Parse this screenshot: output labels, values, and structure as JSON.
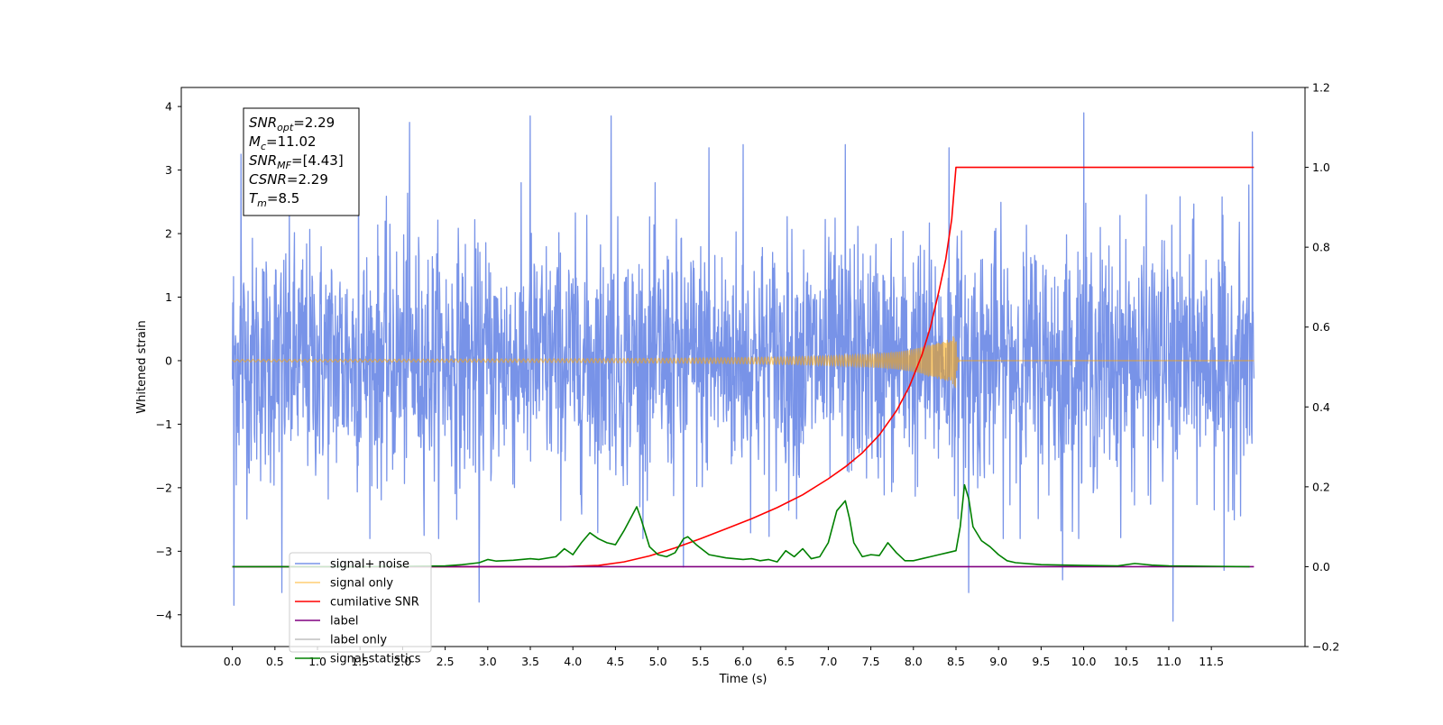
{
  "chart_data": {
    "type": "line",
    "xlabel": "Time (s)",
    "ylabel": "Whitened strain",
    "ylabel_right": "",
    "xlim": [
      -0.6,
      12.6
    ],
    "ylim": [
      -4.5,
      4.3
    ],
    "ylim_right": [
      -0.2,
      1.2
    ],
    "x_ticks": [
      0.0,
      0.5,
      1.0,
      1.5,
      2.0,
      2.5,
      3.0,
      3.5,
      4.0,
      4.5,
      5.0,
      5.5,
      6.0,
      6.5,
      7.0,
      7.5,
      8.0,
      8.5,
      9.0,
      9.5,
      10.0,
      10.5,
      11.0,
      11.5
    ],
    "x_tick_labels": [
      "0.0",
      "0.5",
      "1.0",
      "1.5",
      "2.0",
      "2.5",
      "3.0",
      "3.5",
      "4.0",
      "4.5",
      "5.0",
      "5.5",
      "6.0",
      "6.5",
      "7.0",
      "7.5",
      "8.0",
      "8.5",
      "9.0",
      "9.5",
      "10.0",
      "10.5",
      "11.0",
      "11.5"
    ],
    "y_ticks": [
      -4,
      -3,
      -2,
      -1,
      0,
      1,
      2,
      3,
      4
    ],
    "y_tick_labels": [
      "−4",
      "−3",
      "−2",
      "−1",
      "0",
      "1",
      "2",
      "3",
      "4"
    ],
    "y_ticks_right": [
      -0.2,
      0.0,
      0.2,
      0.4,
      0.6,
      0.8,
      1.0,
      1.2
    ],
    "y_tick_labels_right": [
      "−0.2",
      "0.0",
      "0.2",
      "0.4",
      "0.6",
      "0.8",
      "1.0",
      "1.2"
    ],
    "grid": false,
    "legend_position": "lower-left",
    "annotation": {
      "lines": [
        {
          "base": "SNR",
          "sub": "opt",
          "value": "=2.29"
        },
        {
          "base": "M",
          "sub": "c",
          "value": "=11.02"
        },
        {
          "base": "SNR",
          "sub": "MF",
          "value": "=[4.43]"
        },
        {
          "base": "CSNR",
          "sub": "",
          "value": "=2.29"
        },
        {
          "base": "T",
          "sub": "m",
          "value": "=8.5"
        }
      ]
    },
    "series": [
      {
        "name": "signal+ noise",
        "color": "#7893e8",
        "axis": "left",
        "kind": "noise",
        "x_range": [
          0.0,
          12.0
        ],
        "band": [
          -2.3,
          2.3
        ],
        "spikes": [
          {
            "x": 0.02,
            "y": -3.85
          },
          {
            "x": 0.1,
            "y": 3.25
          },
          {
            "x": 0.58,
            "y": -3.65
          },
          {
            "x": 1.48,
            "y": 3.35
          },
          {
            "x": 2.08,
            "y": 3.75
          },
          {
            "x": 2.9,
            "y": -3.8
          },
          {
            "x": 3.5,
            "y": 3.85
          },
          {
            "x": 4.45,
            "y": 3.85
          },
          {
            "x": 5.3,
            "y": -3.25
          },
          {
            "x": 5.6,
            "y": 3.35
          },
          {
            "x": 6.0,
            "y": 3.4
          },
          {
            "x": 7.2,
            "y": 3.4
          },
          {
            "x": 8.42,
            "y": 3.35
          },
          {
            "x": 8.65,
            "y": -3.65
          },
          {
            "x": 9.75,
            "y": -3.45
          },
          {
            "x": 10.0,
            "y": 3.9
          },
          {
            "x": 11.05,
            "y": -4.1
          },
          {
            "x": 11.65,
            "y": -3.3
          },
          {
            "x": 11.98,
            "y": 3.6
          }
        ]
      },
      {
        "name": "signal only",
        "color": "#ffa500",
        "axis": "left",
        "kind": "chirp",
        "x_range": [
          0.0,
          12.0
        ],
        "merger_time": 8.5,
        "peak_amplitude": 0.45
      },
      {
        "name": "cumilative SNR",
        "color": "#ff0000",
        "axis": "right",
        "x": [
          0.0,
          3.0,
          3.5,
          3.9,
          4.3,
          4.6,
          4.9,
          5.2,
          5.5,
          5.8,
          6.1,
          6.4,
          6.7,
          7.0,
          7.2,
          7.4,
          7.6,
          7.8,
          7.95,
          8.1,
          8.2,
          8.3,
          8.38,
          8.45,
          8.5,
          12.0
        ],
        "y": [
          0.0,
          0.0,
          0.0,
          0.0,
          0.003,
          0.012,
          0.027,
          0.047,
          0.07,
          0.095,
          0.12,
          0.148,
          0.18,
          0.22,
          0.25,
          0.285,
          0.33,
          0.39,
          0.45,
          0.53,
          0.6,
          0.69,
          0.77,
          0.87,
          1.0,
          1.0
        ]
      },
      {
        "name": "label",
        "color": "#800080",
        "axis": "right",
        "x": [
          0.0,
          12.0
        ],
        "y": [
          0.0,
          0.0
        ]
      },
      {
        "name": "label only",
        "color": "#bfbfbf",
        "axis": "right",
        "x": [
          0.0,
          12.0
        ],
        "y": [
          0.0,
          0.0
        ]
      },
      {
        "name": "signal statistics",
        "color": "#008000",
        "axis": "right",
        "x": [
          0.0,
          0.5,
          1.0,
          1.5,
          2.0,
          2.5,
          2.7,
          2.9,
          3.0,
          3.1,
          3.3,
          3.5,
          3.6,
          3.8,
          3.9,
          4.0,
          4.1,
          4.2,
          4.3,
          4.4,
          4.5,
          4.6,
          4.7,
          4.75,
          4.8,
          4.9,
          5.0,
          5.1,
          5.2,
          5.3,
          5.35,
          5.45,
          5.6,
          5.8,
          6.0,
          6.1,
          6.2,
          6.3,
          6.4,
          6.5,
          6.6,
          6.7,
          6.8,
          6.9,
          7.0,
          7.1,
          7.2,
          7.25,
          7.3,
          7.4,
          7.5,
          7.6,
          7.7,
          7.8,
          7.9,
          8.0,
          8.1,
          8.2,
          8.3,
          8.4,
          8.5,
          8.55,
          8.6,
          8.65,
          8.7,
          8.8,
          8.9,
          9.0,
          9.1,
          9.2,
          9.5,
          10.0,
          10.4,
          10.6,
          10.8,
          11.0,
          11.5,
          11.95
        ],
        "y": [
          0.0,
          0.0,
          0.0,
          0.0,
          0.001,
          0.002,
          0.005,
          0.01,
          0.018,
          0.014,
          0.016,
          0.02,
          0.018,
          0.025,
          0.045,
          0.03,
          0.06,
          0.085,
          0.07,
          0.06,
          0.055,
          0.09,
          0.13,
          0.15,
          0.12,
          0.05,
          0.03,
          0.025,
          0.035,
          0.07,
          0.075,
          0.055,
          0.03,
          0.022,
          0.018,
          0.02,
          0.015,
          0.018,
          0.012,
          0.04,
          0.025,
          0.045,
          0.02,
          0.025,
          0.06,
          0.14,
          0.165,
          0.12,
          0.06,
          0.025,
          0.03,
          0.028,
          0.06,
          0.035,
          0.015,
          0.015,
          0.02,
          0.025,
          0.03,
          0.035,
          0.04,
          0.1,
          0.205,
          0.17,
          0.1,
          0.065,
          0.05,
          0.03,
          0.015,
          0.01,
          0.005,
          0.003,
          0.002,
          0.008,
          0.004,
          0.002,
          0.001,
          0.0
        ]
      }
    ]
  }
}
